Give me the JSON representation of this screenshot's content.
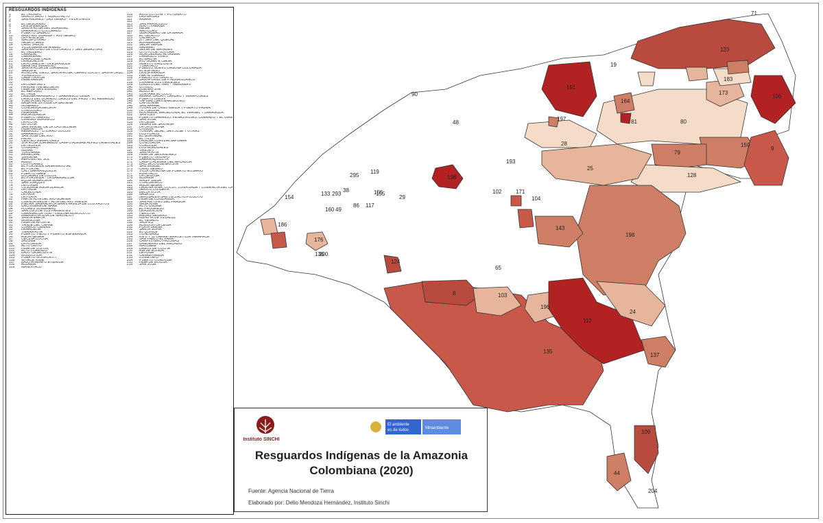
{
  "legend": {
    "title": "RESGUARDOS INDÍGENAS",
    "entries_left": [
      [
        "1",
        "EL TRIUNFO"
      ],
      [
        "2",
        "GUACO BAJO Y GUACO ALTO"
      ],
      [
        "3",
        "SAN ANDRES - LAS VEGAS - VILLA UNION"
      ],
      [
        "4",
        ""
      ],
      [
        "5",
        "EL DESCANSO"
      ],
      [
        "6",
        "LA ESPERANZA"
      ],
      [
        "7",
        "SANTA ROSA DEL GUAMUEZ"
      ],
      [
        "8",
        "BARRANCO COLORADO"
      ],
      [
        "9",
        "PUERTO SABALO"
      ],
      [
        "10",
        "BAJO RIO GUAINIA Y RIO NEGRO"
      ],
      [
        "11",
        "LA PRINCESA"
      ],
      [
        "12",
        "WACUPUTRAO"
      ],
      [
        "13",
        "NASA CHAMB"
      ],
      [
        "14",
        "CAÑO JABON"
      ],
      [
        "15",
        "VILLA MARIA DE ANAMU"
      ],
      [
        "16",
        "SAN ANTONIO DE LOS LAGOS Y SAN SEBASTIAN"
      ],
      [
        "17",
        "EL TABLERO"
      ],
      [
        "18",
        "CARAZAL"
      ],
      [
        "19",
        "CARAVERAL"
      ],
      [
        "20",
        "KARACUBE CADA"
      ],
      [
        "21",
        "LA AGUADITA"
      ],
      [
        "22",
        "LA FLORESTA - LA ESPAÑOLA"
      ],
      [
        "23",
        "NERETAS MIRAMINO"
      ],
      [
        "24",
        "SANTA ROSA DE JUANAMBU"
      ],
      [
        "25",
        "VAGUIPE"
      ],
      [
        "26",
        "RONCHAL VIEJO, SANTA ROSA, CERRO COCUY, SANTA CRUZ, CAÑO DANTA"
      ],
      [
        "27",
        "YUNGUILLO"
      ],
      [
        "28",
        "CAMPITA RIVA"
      ],
      [
        "29",
        "INGA KAMSA"
      ],
      [
        "30",
        ""
      ],
      [
        "31",
        "LA LIBERTAD 2"
      ],
      [
        "32",
        "PANURE (VENEZUELA)"
      ],
      [
        "33",
        "INGA DE SAN MIGUEL"
      ],
      [
        "34",
        "EL REFUGIO"
      ],
      [
        "35",
        "EL TRUE"
      ],
      [
        "36",
        "LAGUNA ARAGUATO Y BARRANCO CEIBA"
      ],
      [
        "37",
        "LAGOS DEL DORADO, LAGOS DEL PASO Y EL REMANSO"
      ],
      [
        "38",
        "VUELTA DEL ALIVIO"
      ],
      [
        "39",
        "NASA WE SX KIWE LA GAITANA"
      ],
      [
        "40",
        "NONERAS"
      ],
      [
        "41",
        "CONDAGUA MECAYA"
      ],
      [
        "42",
        "COROCORO"
      ],
      [
        "43",
        "INGA AWA"
      ],
      [
        "44",
        "AGUA BLANCA"
      ],
      [
        "45",
        "PUERTO NARIÑO"
      ],
      [
        "46",
        "CUMBAS GUAMUCO"
      ],
      [
        "47",
        "LA FLOTA"
      ],
      [
        "48",
        "GITUCHA"
      ],
      [
        "49",
        "SAN MIGUEL DE LA CASTELLANA"
      ],
      [
        "50",
        "INGA KAMSA"
      ],
      [
        "51",
        "REMANSO - CHORRO BOCON"
      ],
      [
        "52",
        "BARRANCON"
      ],
      [
        "53",
        "SAN JOSE DEL RIO"
      ],
      [
        "54",
        "PALMI"
      ],
      [
        "55",
        "CENTRO MIRAFLORES"
      ],
      [
        "56",
        "STA ROSA JUANAMBU CAMPO ALEGRE ALPES ORIENTALES"
      ],
      [
        "57",
        "LA TEOFILA"
      ],
      [
        "58",
        "CHIGUIRO"
      ],
      [
        "59",
        "NUKAK"
      ],
      [
        "60",
        "TUKUNARE"
      ],
      [
        "61",
        "ARRECIFAL"
      ],
      [
        "62",
        "SIMORNA"
      ],
      [
        "63",
        "REFUGIO EL SOL"
      ],
      [
        "64",
        "ABUBI"
      ],
      [
        "65",
        "LOS PLANES"
      ],
      [
        "66",
        "EL PORVENIR KANANGUCHAL"
      ],
      [
        "67",
        "EL PORTAL"
      ],
      [
        "68",
        "CALI BARRANQUILLA"
      ],
      [
        "69",
        "PUERTO NARE"
      ],
      [
        "70",
        "BOCANAS DE LUZON"
      ],
      [
        "71",
        "EL PORVENIR - LA BARRIALOSA"
      ],
      [
        "72",
        "EQUA GUARICAYA"
      ],
      [
        "73",
        "SAN JOAQUIN"
      ],
      [
        "74",
        "ISHU AWA"
      ],
      [
        "75",
        "CUSUMBE AGUA BLANCA"
      ],
      [
        "76",
        "LA ITALIA"
      ],
      [
        "77",
        "CALEDONIA"
      ],
      [
        "78",
        "LA PAYA"
      ],
      [
        "79",
        "LA PLAYA"
      ],
      [
        "80",
        "PARTE ALTA DEL RIO GUAINIA"
      ],
      [
        "81",
        "CUENCA MEDIA Y ALTA DEL RIO INIRIDA"
      ],
      [
        "82",
        "PIEDRA SAGRADA LA GRAN FAMILIA DE LOS PASTOS"
      ],
      [
        "83",
        "CACHIVERA DE NARE"
      ],
      [
        "84",
        "FLORES SOMBRERO"
      ],
      [
        "85",
        "SAN LUIS DE LOS PARIENTES"
      ],
      [
        "86",
        "CARANACOA YURI - LAGUNA MOROCOTO"
      ],
      [
        "87",
        "BARRANTIA BIVA DE GIRUNDOY"
      ],
      [
        "88",
        "SANTA MARTA"
      ],
      [
        "89",
        "GORGONIA"
      ],
      [
        "90",
        "INGA DE APONTE"
      ],
      [
        "91",
        "YANDE DEL CAFRE"
      ],
      [
        "92",
        "CHARCO CAIMAN"
      ],
      [
        "93",
        "LA ARCELIA"
      ],
      [
        "94",
        "TIERRA ALTA"
      ],
      [
        "95",
        "PUERTO VIEJO Y PUERTO ESPERANZA"
      ],
      [
        "96",
        "AGUA NEGRA"
      ],
      [
        "97",
        "CECILIA COCHA"
      ],
      [
        "98",
        "JACOME"
      ],
      [
        "99",
        "LA FLORIDA"
      ],
      [
        "100",
        "ALTO ORITO"
      ],
      [
        "101",
        "INGA DE COLON"
      ],
      [
        "102",
        "ALTO LORENZO"
      ],
      [
        "103",
        "BAJO CASACUNTE"
      ],
      [
        "104",
        "MONOCHOA"
      ],
      [
        "105",
        "PUERTO MONFORTH"
      ],
      [
        "106",
        "WITACE KIWE"
      ],
      [
        "107",
        "BAJO ATABAPO E INIRIDA"
      ],
      [
        "108",
        "ALBANIA"
      ],
      [
        "109",
        "MANDIYACO"
      ]
    ],
    "entries_right": [
      [
        "109",
        "RIOS COTUHE Y PUTUMAYO"
      ],
      [
        "110",
        "LAS BRISAS"
      ],
      [
        "111",
        "ARARA"
      ],
      [
        "112",
        ""
      ],
      [
        "113",
        "SAN FRANCISCO"
      ],
      [
        "114",
        "MIRITI PARANA"
      ],
      [
        "115",
        "MESAI"
      ],
      [
        "116",
        "MATICURU"
      ],
      [
        "117",
        "GUAYABERO DE LA MARIA"
      ],
      [
        "118",
        "EL CEDRITO"
      ],
      [
        "119",
        "CALARCA"
      ],
      [
        "120",
        "ZIT SEK DEL QUECAL"
      ],
      [
        "121",
        "ALPAMANGA"
      ],
      [
        "122",
        "SELVA VERDE"
      ],
      [
        "123",
        "NAZARET"
      ],
      [
        "124",
        "SELVA DE MATAVEN"
      ],
      [
        "125",
        "UITOTO DE HUITORA"
      ],
      [
        "126",
        "MURCIELAGO ALTAMIRA"
      ],
      [
        "127",
        "DAMASCO VIDES"
      ],
      [
        "128",
        "EL MACHA"
      ],
      [
        "129",
        "RIO GUARI E ISANA"
      ],
      [
        "130",
        "NUEVO HORIZONTE"
      ],
      [
        "131",
        "YURAYACO"
      ],
      [
        "132",
        "PUEBLO NUEVO LAGUNA COLORADA"
      ],
      [
        "133",
        "EL ESPINGO"
      ],
      [
        "134",
        "LA ESPERANZA"
      ],
      [
        "135",
        "PARTE OIRANO"
      ],
      [
        "136",
        "PREDIO PUTUMAYO"
      ],
      [
        "137",
        "SANTA CRUZ DE PIÑUNA BLANCO"
      ],
      [
        "138",
        "CURARE LOS INGLESES"
      ],
      [
        "139",
        "LLANOS DEL YARI - YAGUARA II"
      ],
      [
        "140",
        "UITIBOC"
      ],
      [
        "141",
        "BUENAVISTA"
      ],
      [
        "142",
        "ADUCHE"
      ],
      [
        "143",
        "COAYARE EL COCO"
      ],
      [
        "144",
        "ARARA, BACATI, CARURU Y MIRAFLORES"
      ],
      [
        "145",
        "PUERTO LIMON"
      ],
      [
        "146",
        "YAPINAL (SAN MARCELINO)"
      ],
      [
        "147",
        "CAPINTANA"
      ],
      [
        "148",
        "SAN RAFAEL"
      ],
      [
        "149",
        "TUCAN DE CAÑO GIRIZA Y PUERTO PALMA"
      ],
      [
        "150",
        "LA TURBINA"
      ],
      [
        "151",
        "MOCAGUA, MACEDONIA, EL VERGEL Y ZARAGOZA"
      ],
      [
        "152",
        "SAN LUIS"
      ],
      [
        "153",
        "PUERTO NARANJO, PEÑAS ROJAS, CUERAZO Y EL DIAMANTE"
      ],
      [
        "154",
        "SAN JOSE"
      ],
      [
        "155",
        "LA CEIBA"
      ],
      [
        "156",
        "VEGAS DE SANTANA"
      ],
      [
        "157",
        "LA CRISTALINA"
      ],
      [
        "158",
        "CHIGUIA"
      ],
      [
        "159",
        "TONINA, SEJAL, SAN JOSE Y OTRAS"
      ],
      [
        "160",
        "LOS PIJAOS"
      ],
      [
        "161",
        "EL GUAYABAL"
      ],
      [
        "162",
        "EL ITILLA"
      ],
      [
        "163",
        "LAGUNA CURVINA SAPUARA"
      ],
      [
        "164",
        "CONCORDIA"
      ],
      [
        "165",
        "CORDOBA"
      ],
      [
        "166",
        "LOS GUADUALES"
      ],
      [
        "167",
        "YAGUA II"
      ],
      [
        "168",
        "SANTA RITA"
      ],
      [
        "169",
        "INGA DE SAN ANDRES"
      ],
      [
        "170",
        "PUERTO TRIUNFO"
      ],
      [
        "171",
        "BARRANQUILLITA"
      ],
      [
        "172",
        "CAMPO ALEGRE DEL AFILADOR"
      ],
      [
        "173",
        "BACHACO BUENAVISTA"
      ],
      [
        "174",
        "SAN MIGUEL"
      ],
      [
        "175",
        "CAÑO NEGRO"
      ],
      [
        "176",
        "VILLA CATALINA DE PUERTO ROSARIO"
      ],
      [
        "177",
        "RUMIYACO"
      ],
      [
        "178",
        "LA CEIBOSA"
      ],
      [
        "179",
        "ALBANIA"
      ],
      [
        "180",
        "WASIP WESA"
      ],
      [
        "181",
        "CHALUAYACO"
      ],
      [
        "182",
        "AGUA NEGRA"
      ],
      [
        "183",
        "LAGUNA NIÑA, COCUY, LOMA BABA Y LOMA ALTA DEL CAÑO GUARIPA"
      ],
      [
        "184",
        "JERICO CONSAYA"
      ],
      [
        "185",
        "BELLA VISTA"
      ],
      [
        "186",
        "NASA US"
      ],
      [
        "187",
        "JERUSALEN-SAN LUIS ALTO PICUDITO"
      ],
      [
        "188",
        "INGA DE CONDAGUA"
      ],
      [
        "189",
        "SAN ANTONIO DEL FRAGUA"
      ],
      [
        "190",
        "NASA KIWE"
      ],
      [
        "191",
        "ALTO UNUMA"
      ],
      [
        "192",
        "EL PROGRESO"
      ],
      [
        "193",
        "LA ASUNCION"
      ],
      [
        "194",
        "HERICHA"
      ],
      [
        "195",
        "AGUAS NEGRAS"
      ],
      [
        "196",
        "NUNUYA DE VILLAZUL"
      ],
      [
        "197",
        "EL VENADO"
      ],
      [
        "198",
        "VAUPES"
      ],
      [
        "199",
        "ALMIDON LA CEIBA"
      ],
      [
        "200",
        "PLAYA LARGA"
      ],
      [
        "201",
        "SANTA SOFIA"
      ],
      [
        "202",
        "EL QUINCE"
      ],
      [
        "203",
        "HONDURAS"
      ],
      [
        "204",
        "KM 6 Y 11 CARRETERA LETICIA TARAPACA"
      ],
      [
        "205",
        "SAN PABLO EL PARA"
      ],
      [
        "206",
        "CARPINTERO PALOMAS"
      ],
      [
        "207",
        "BANDERAS DEL RECAIBO"
      ],
      [
        "208",
        "MACUARE"
      ],
      [
        "209",
        "LAGOS DE COCHA"
      ],
      [
        "210",
        "RIA DE RONDA"
      ],
      [
        "211",
        "LA FUGA"
      ],
      [
        "212",
        "CANREITAGUA"
      ],
      [
        "213",
        "COMEYAFU"
      ],
      [
        "214",
        "PUERTO CORDOBA"
      ],
      [
        "215",
        "INGA DE MOCOA"
      ],
      [
        "216",
        "SAN JOSE"
      ]
    ]
  },
  "map_labels": [
    "71",
    "123",
    "19",
    "191",
    "183",
    "173",
    "106",
    "90",
    "48",
    "164",
    "81",
    "80",
    "159",
    "9",
    "28",
    "25",
    "79",
    "128",
    "197",
    "193",
    "295",
    "119",
    "138",
    "38",
    "29",
    "155",
    "86",
    "117",
    "102",
    "171",
    "104",
    "133",
    "293",
    "186",
    "160",
    "49",
    "176",
    "198",
    "143",
    "200",
    "136",
    "124",
    "65",
    "8",
    "103",
    "196",
    "24",
    "113",
    "135",
    "137",
    "109",
    "44",
    "204",
    "154",
    "155"
  ],
  "title_box": {
    "institute_name": "Instituto SINCHI",
    "ministry_text": "El ambiente es de todos",
    "ministry_name": "Minambiente",
    "title_line1": "Resguardos Indígenas de la Amazonia",
    "title_line2": "Colombiana (2020)",
    "source": "Fuente: Agencia Nacional de Tierra",
    "author": "Elaborado por: Delio Mendoza Hernández, Instituto Sinchi"
  },
  "colors": {
    "dark_red": "#b22222",
    "red": "#c8584a",
    "mid": "#cf7e66",
    "light": "#e6b59b",
    "pale": "#f5dcc9",
    "outline": "#333333"
  }
}
